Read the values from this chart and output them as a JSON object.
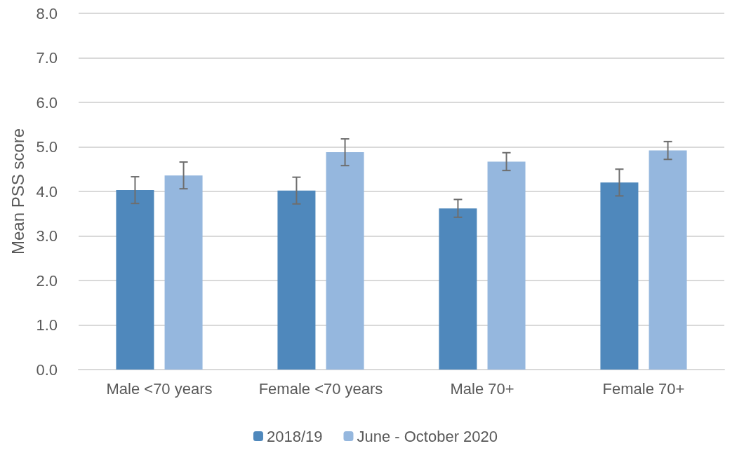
{
  "chart_data": {
    "type": "bar",
    "ylabel": "Mean PSS score",
    "categories": [
      "Male <70 years",
      "Female <70 years",
      "Male 70+",
      "Female 70+"
    ],
    "series": [
      {
        "name": "2018/19",
        "color": "#4f88bc",
        "values": [
          4.03,
          4.02,
          3.62,
          4.2
        ],
        "errors": [
          0.3,
          0.3,
          0.2,
          0.3
        ]
      },
      {
        "name": "June - October 2020",
        "color": "#95b7de",
        "values": [
          4.36,
          4.88,
          4.67,
          4.92
        ],
        "errors": [
          0.3,
          0.3,
          0.2,
          0.2
        ]
      }
    ],
    "ylim": [
      0,
      8
    ],
    "yticks": [
      {
        "value": 0,
        "label": "0.0"
      },
      {
        "value": 1,
        "label": "1.0"
      },
      {
        "value": 2,
        "label": "2.0"
      },
      {
        "value": 3,
        "label": "3.0"
      },
      {
        "value": 4,
        "label": "4.0"
      },
      {
        "value": 5,
        "label": "5.0"
      },
      {
        "value": 6,
        "label": "6.0"
      },
      {
        "value": 7,
        "label": "7.0"
      },
      {
        "value": 8,
        "label": "8.0"
      }
    ],
    "grid": "y",
    "legend": "bottom"
  }
}
